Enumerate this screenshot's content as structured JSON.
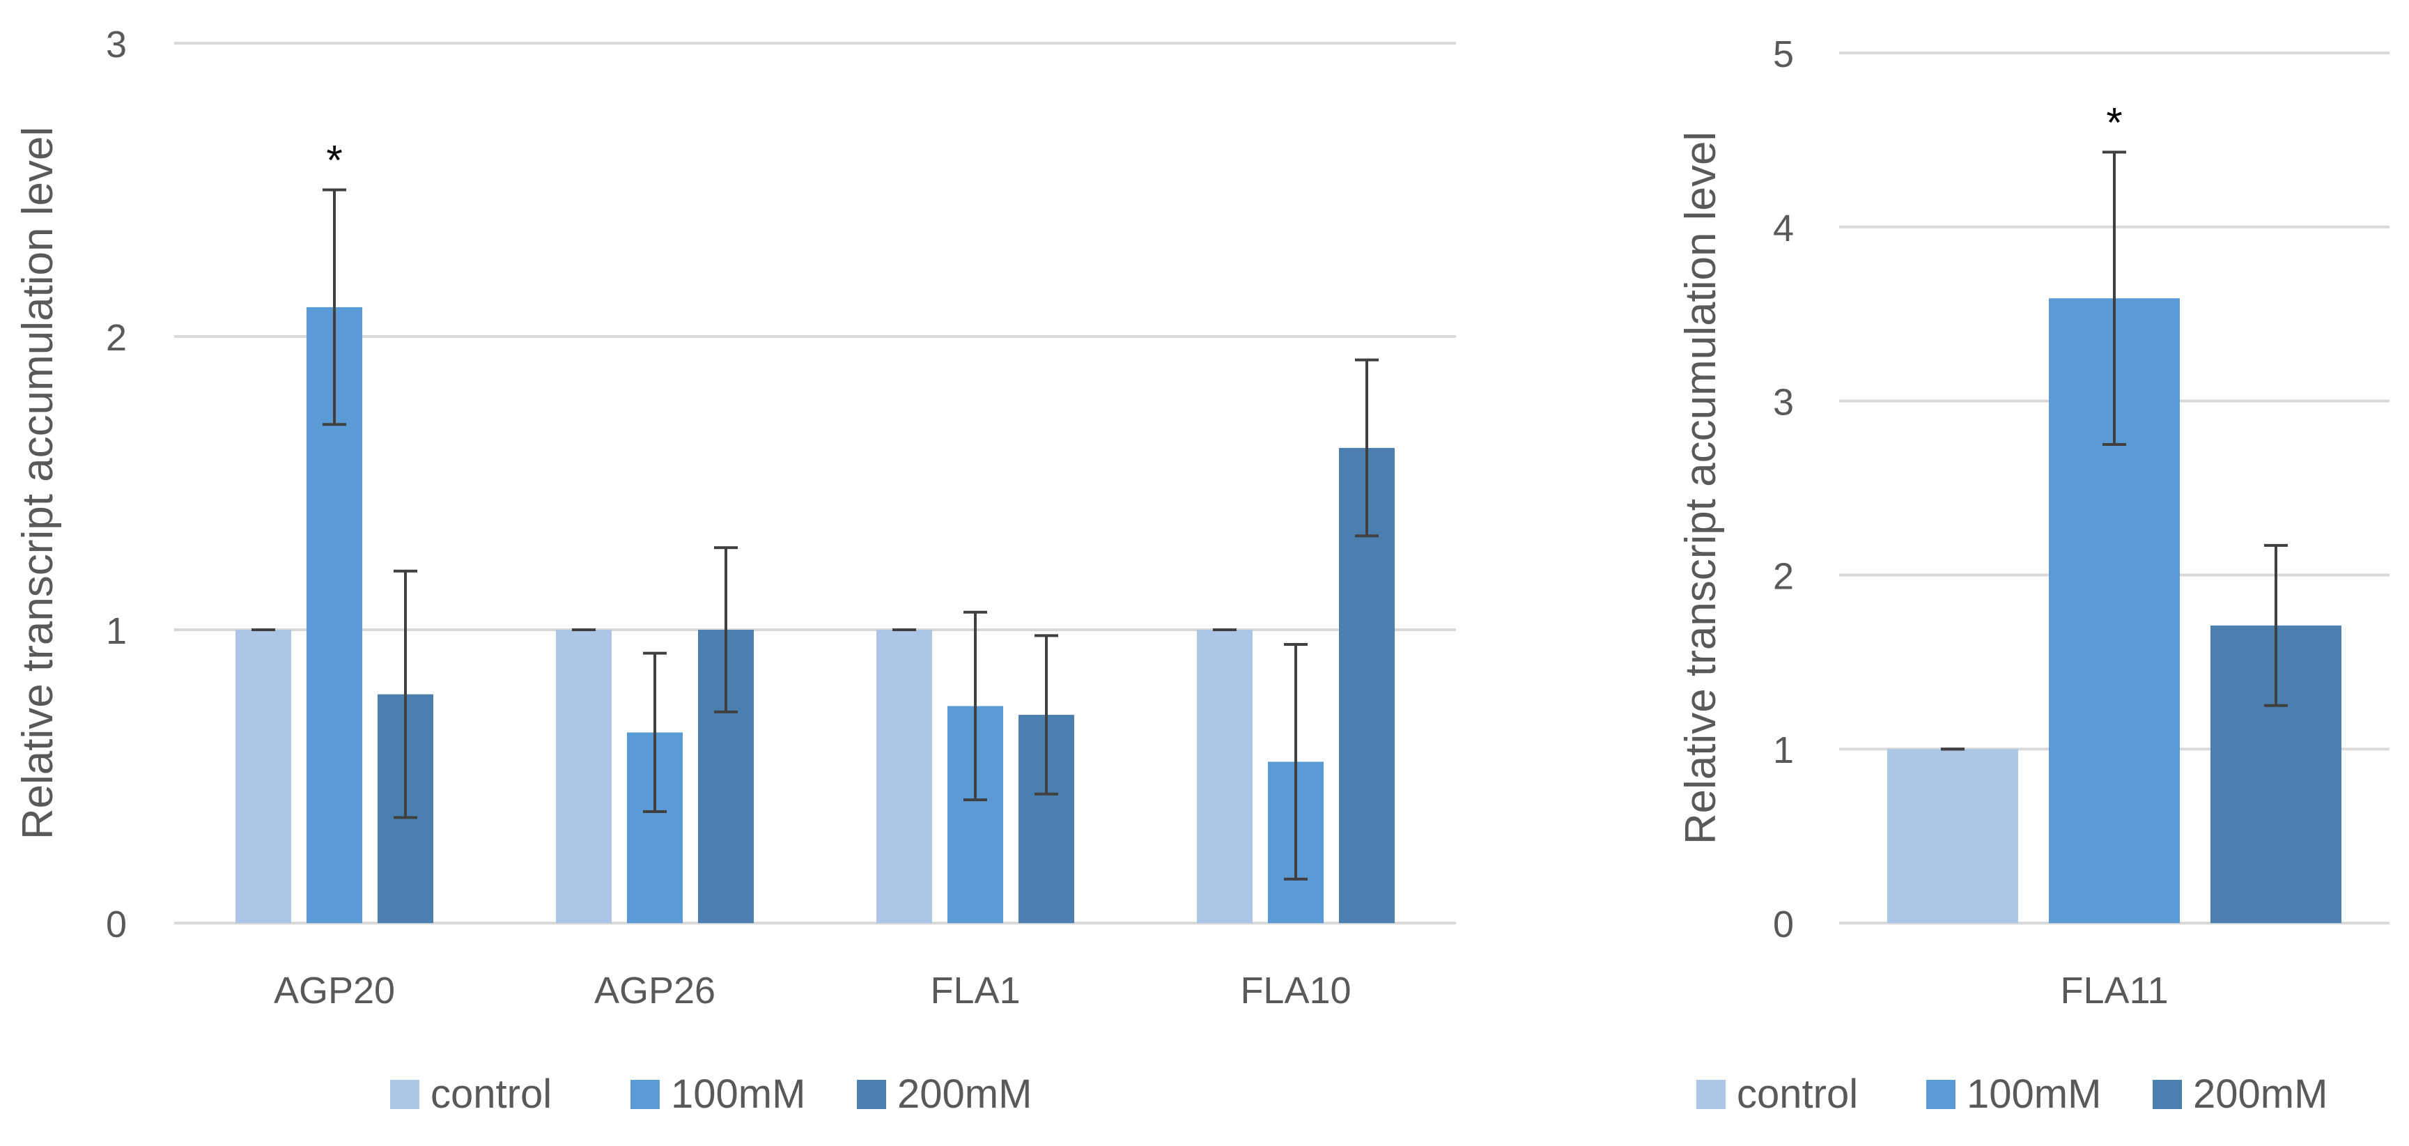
{
  "chart_data": [
    {
      "type": "bar",
      "categories": [
        "AGP20",
        "AGP26",
        "FLA1",
        "FLA10"
      ],
      "ylabel": "Relative transcript accumulation level",
      "ylim": [
        0,
        3
      ],
      "yticks": [
        "0",
        "1",
        "2",
        "3"
      ],
      "grid": true,
      "legend_position": "bottom",
      "series": [
        {
          "name": "control",
          "color": "#aec6e6",
          "values": [
            1.0,
            1.0,
            1.0,
            1.0
          ],
          "errors": [
            0,
            0,
            0,
            0
          ]
        },
        {
          "name": "100mM",
          "color": "#5b9bd5",
          "values": [
            2.1,
            0.65,
            0.74,
            0.55
          ],
          "errors": [
            0.4,
            0.27,
            0.32,
            0.4
          ]
        },
        {
          "name": "200mM",
          "color": "#4a7fb0",
          "values": [
            0.78,
            1.0,
            0.71,
            1.62
          ],
          "errors": [
            0.42,
            0.28,
            0.27,
            0.3
          ]
        }
      ],
      "annotations": [
        {
          "category": "AGP20",
          "series": "100mM",
          "text": "*"
        }
      ]
    },
    {
      "type": "bar",
      "categories": [
        "FLA11"
      ],
      "ylabel": "Relative transcript accumulation level",
      "ylim": [
        0,
        5
      ],
      "yticks": [
        "0",
        "1",
        "2",
        "3",
        "4",
        "5"
      ],
      "grid": true,
      "legend_position": "bottom",
      "series": [
        {
          "name": "control",
          "color": "#aec6e6",
          "values": [
            1.0
          ],
          "errors": [
            0
          ]
        },
        {
          "name": "100mM",
          "color": "#5b9bd5",
          "values": [
            3.59
          ],
          "errors": [
            0.84
          ]
        },
        {
          "name": "200mM",
          "color": "#4a7fb0",
          "values": [
            1.71
          ],
          "errors": [
            0.46
          ]
        }
      ],
      "annotations": [
        {
          "category": "FLA11",
          "series": "100mM",
          "text": "*"
        }
      ]
    }
  ]
}
